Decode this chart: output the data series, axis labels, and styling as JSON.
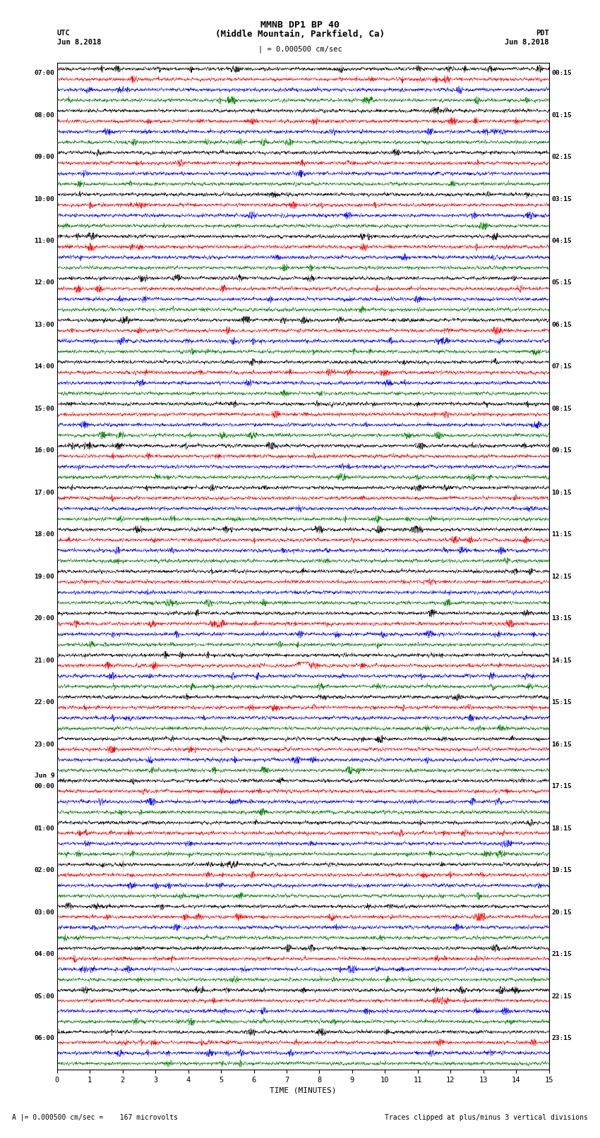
{
  "title_line1": "MMNB DP1 BP 40",
  "title_line2": "(Middle Mountain, Parkfield, Ca)",
  "label_utc": "UTC",
  "label_pdt": "PDT",
  "date_left": "Jun 8,2018",
  "date_right": "Jun 8,2018",
  "scale_text": "| = 0.000500 cm/sec",
  "footer_right": "Traces clipped at plus/minus 3 vertical divisions",
  "xlabel": "TIME (MINUTES)",
  "xlim": [
    0,
    15
  ],
  "xticks": [
    0,
    1,
    2,
    3,
    4,
    5,
    6,
    7,
    8,
    9,
    10,
    11,
    12,
    13,
    14,
    15
  ],
  "colors": [
    "black",
    "red",
    "blue",
    "green"
  ],
  "left_labels": [
    [
      "07:00",
      0
    ],
    [
      "08:00",
      4
    ],
    [
      "09:00",
      8
    ],
    [
      "10:00",
      12
    ],
    [
      "11:00",
      16
    ],
    [
      "12:00",
      20
    ],
    [
      "13:00",
      24
    ],
    [
      "14:00",
      28
    ],
    [
      "15:00",
      32
    ],
    [
      "16:00",
      36
    ],
    [
      "17:00",
      40
    ],
    [
      "18:00",
      44
    ],
    [
      "19:00",
      48
    ],
    [
      "20:00",
      52
    ],
    [
      "21:00",
      56
    ],
    [
      "22:00",
      60
    ],
    [
      "23:00",
      64
    ],
    [
      "Jun 9",
      67
    ],
    [
      "00:00",
      68
    ],
    [
      "01:00",
      72
    ],
    [
      "02:00",
      76
    ],
    [
      "03:00",
      80
    ],
    [
      "04:00",
      84
    ],
    [
      "05:00",
      88
    ],
    [
      "06:00",
      92
    ]
  ],
  "right_labels": [
    [
      "00:15",
      0
    ],
    [
      "01:15",
      4
    ],
    [
      "02:15",
      8
    ],
    [
      "03:15",
      12
    ],
    [
      "04:15",
      16
    ],
    [
      "05:15",
      20
    ],
    [
      "06:15",
      24
    ],
    [
      "07:15",
      28
    ],
    [
      "08:15",
      32
    ],
    [
      "09:15",
      36
    ],
    [
      "10:15",
      40
    ],
    [
      "11:15",
      44
    ],
    [
      "12:15",
      48
    ],
    [
      "13:15",
      52
    ],
    [
      "14:15",
      56
    ],
    [
      "15:15",
      60
    ],
    [
      "16:15",
      64
    ],
    [
      "17:15",
      68
    ],
    [
      "18:15",
      72
    ],
    [
      "19:15",
      76
    ],
    [
      "20:15",
      80
    ],
    [
      "21:15",
      84
    ],
    [
      "22:15",
      88
    ],
    [
      "23:15",
      92
    ]
  ],
  "n_rows": 96,
  "bg_color": "#ffffff",
  "figsize": [
    8.5,
    16.13
  ]
}
